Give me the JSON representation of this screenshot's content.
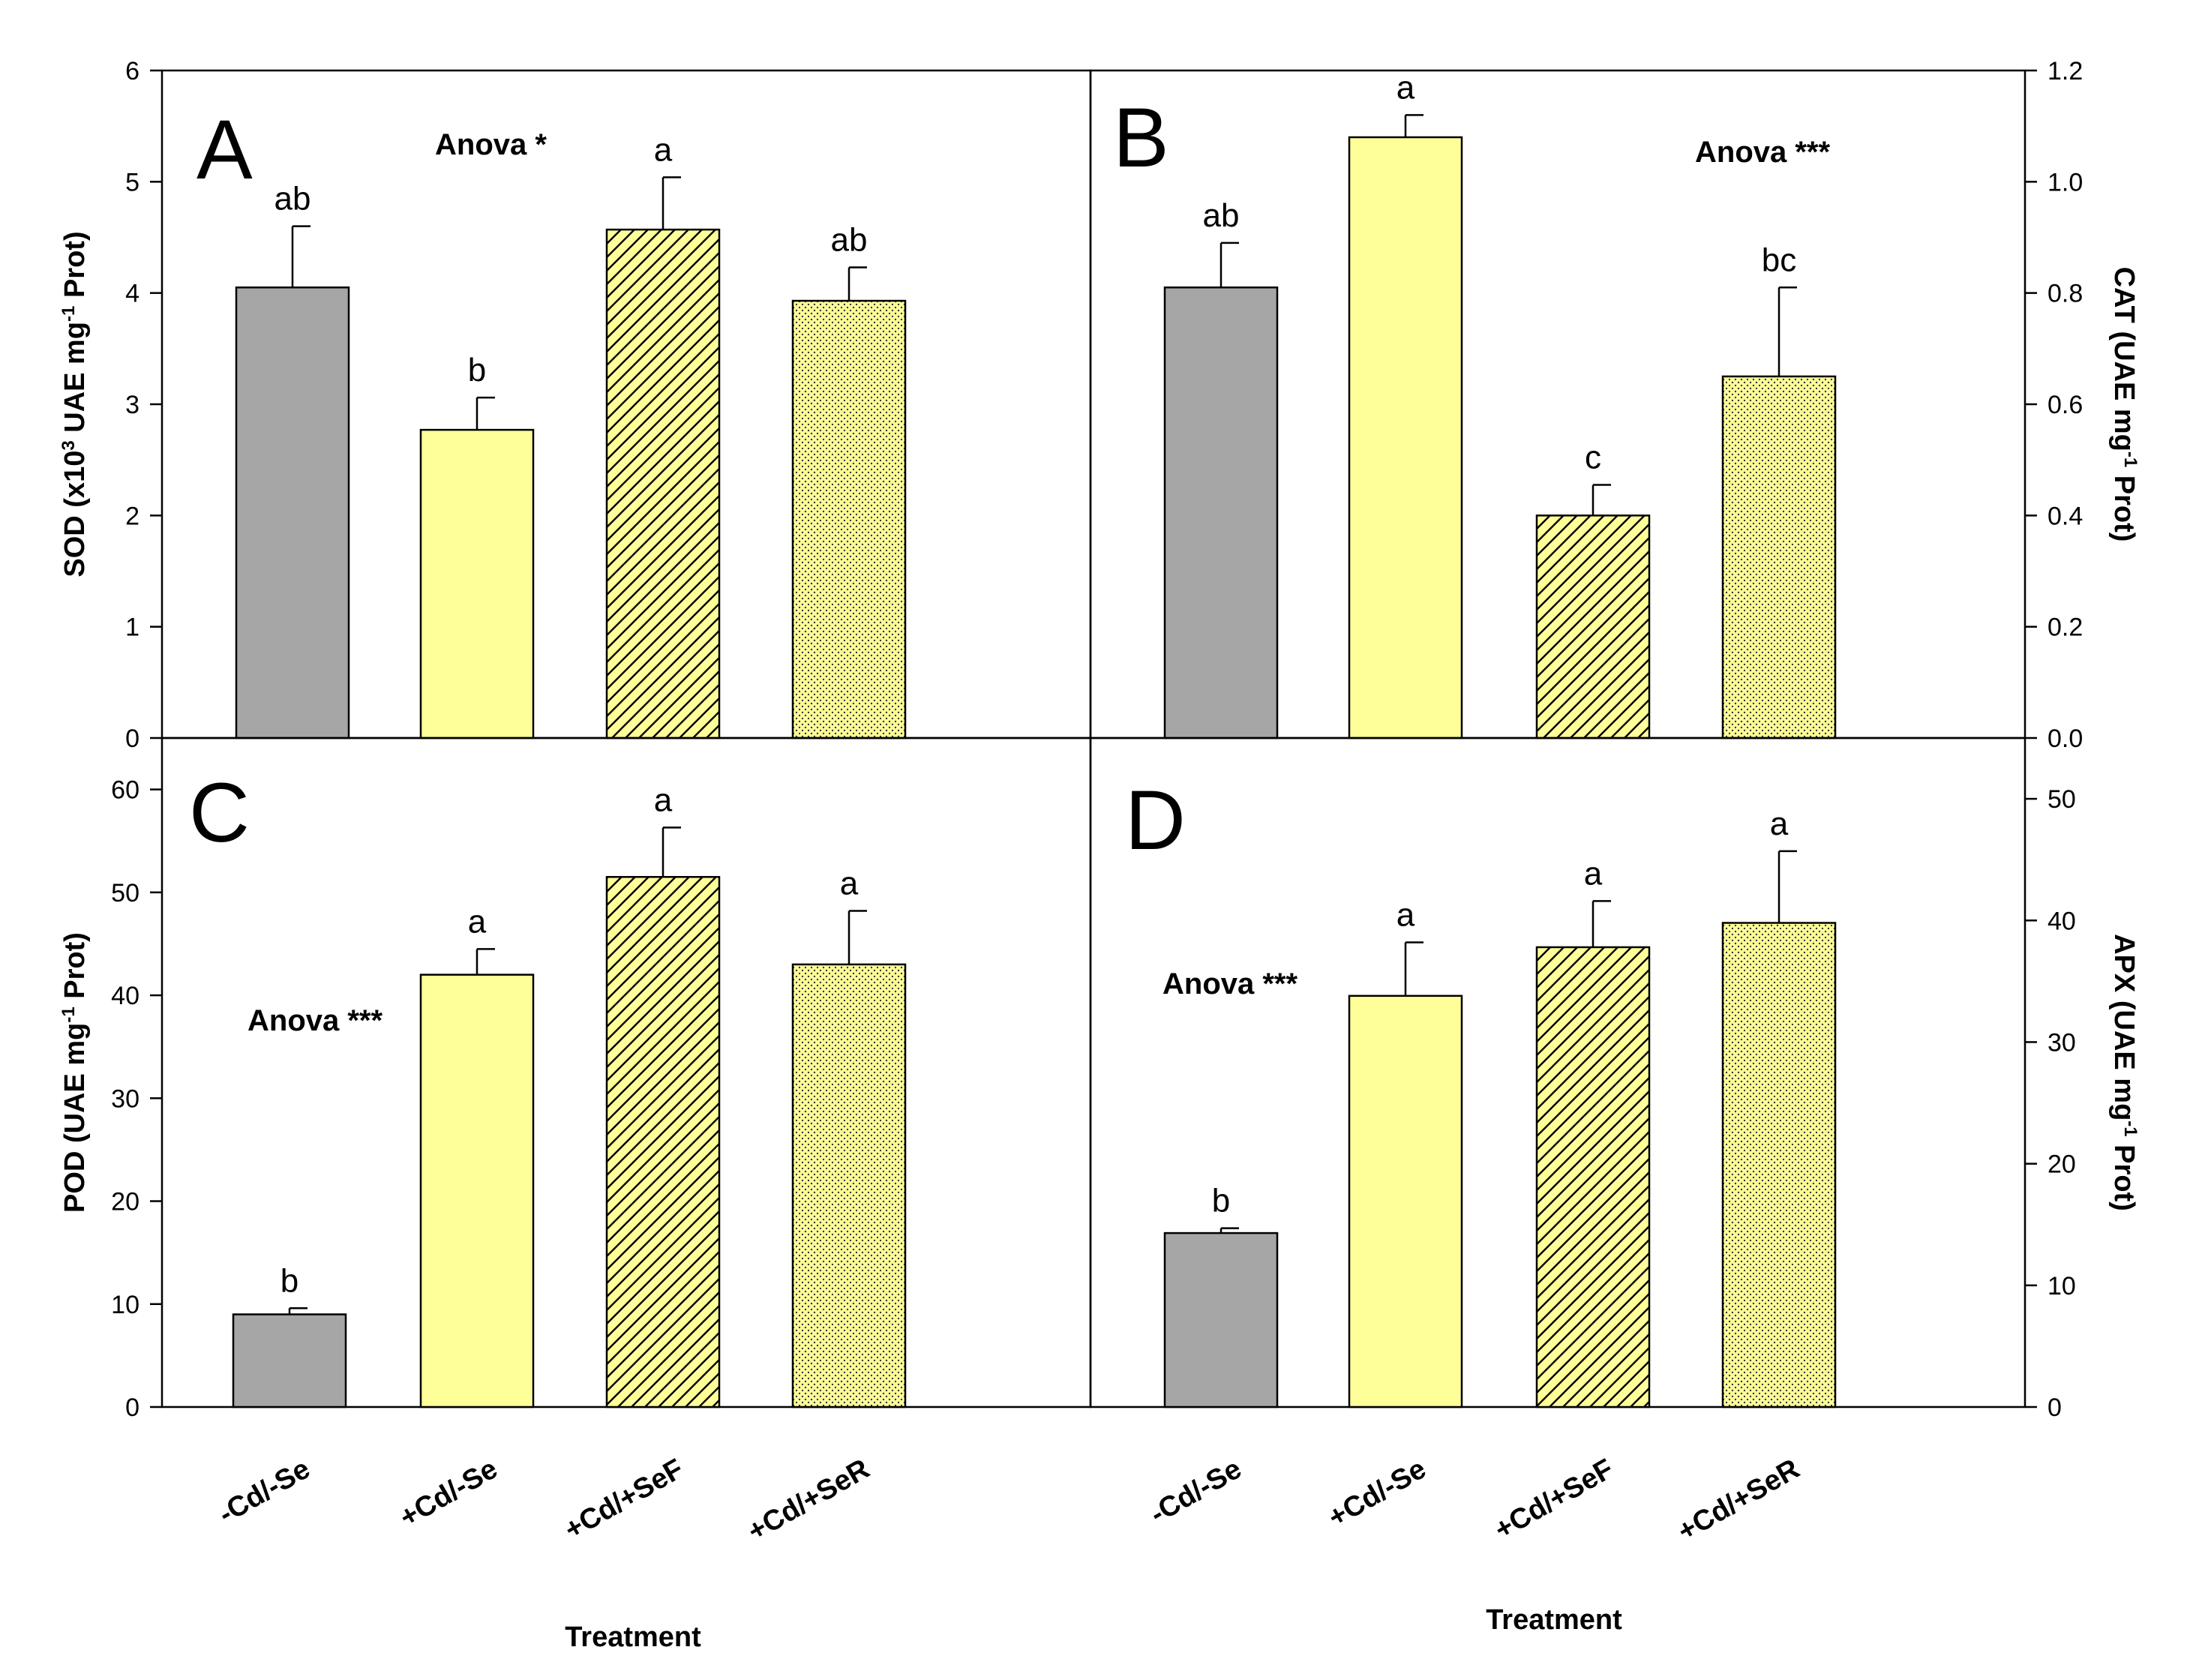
{
  "colors": {
    "gray": "#a6a6a6",
    "yellow": "#ffff99",
    "outline": "#000000"
  },
  "legend_patterns": [
    "solid gray",
    "solid yellow",
    "diagonal hatch on yellow",
    "dotted on yellow"
  ],
  "chart_data": [
    {
      "panel": "A",
      "type": "bar",
      "ylabel": "SOD (x10³ UAE mg⁻¹ Prot)",
      "ylim": [
        0,
        6
      ],
      "yticks": [
        "0",
        "1",
        "2",
        "3",
        "4",
        "5",
        "6"
      ],
      "axis_side": "left",
      "annotation": "Anova *",
      "categories": [
        "-Cd/-Se",
        "+Cd/-Se",
        "+Cd/+SeF",
        "+Cd/+SeR"
      ],
      "values": [
        4.05,
        2.77,
        4.57,
        3.93
      ],
      "errors": [
        0.55,
        0.29,
        0.47,
        0.3
      ],
      "sig_letters": [
        "ab",
        "b",
        "a",
        "ab"
      ]
    },
    {
      "panel": "B",
      "type": "bar",
      "ylabel": "CAT (UAE mg⁻¹ Prot)",
      "ylim": [
        0,
        1.2
      ],
      "yticks": [
        "0.0",
        "0.2",
        "0.4",
        "0.6",
        "0.8",
        "1.0",
        "1.2"
      ],
      "axis_side": "right",
      "annotation": "Anova ***",
      "categories": [
        "-Cd/-Se",
        "+Cd/-Se",
        "+Cd/+SeF",
        "+Cd/+SeR"
      ],
      "values": [
        0.81,
        1.08,
        0.4,
        0.65
      ],
      "errors": [
        0.08,
        0.04,
        0.055,
        0.16
      ],
      "sig_letters": [
        "ab",
        "a",
        "c",
        "bc"
      ]
    },
    {
      "panel": "C",
      "type": "bar",
      "ylabel": "POD (UAE mg⁻¹ Prot)",
      "ylim": [
        0,
        65
      ],
      "yticks": [
        "0",
        "10",
        "20",
        "30",
        "40",
        "50",
        "60"
      ],
      "axis_side": "left",
      "annotation": "Anova ***",
      "categories": [
        "-Cd/-Se",
        "+Cd/-Se",
        "+Cd/+SeF",
        "+Cd/+SeR"
      ],
      "values": [
        9,
        42,
        51.5,
        43
      ],
      "errors": [
        0.6,
        2.5,
        4.8,
        5.2
      ],
      "sig_letters": [
        "b",
        "a",
        "a",
        "a"
      ]
    },
    {
      "panel": "D",
      "type": "bar",
      "ylabel": "APX (UAE mg⁻¹ Prot)",
      "ylim": [
        0,
        55
      ],
      "yticks": [
        "0",
        "10",
        "20",
        "30",
        "40",
        "50"
      ],
      "axis_side": "right",
      "annotation": "Anova ***",
      "categories": [
        "-Cd/-Se",
        "+Cd/-Se",
        "+Cd/+SeF",
        "+Cd/+SeR"
      ],
      "values": [
        14.3,
        33.8,
        37.8,
        39.8
      ],
      "errors": [
        0.4,
        4.4,
        3.8,
        5.9
      ],
      "sig_letters": [
        "b",
        "a",
        "a",
        "a"
      ]
    }
  ],
  "xlabel_left": "Treatment",
  "xlabel_right": "Treatment"
}
